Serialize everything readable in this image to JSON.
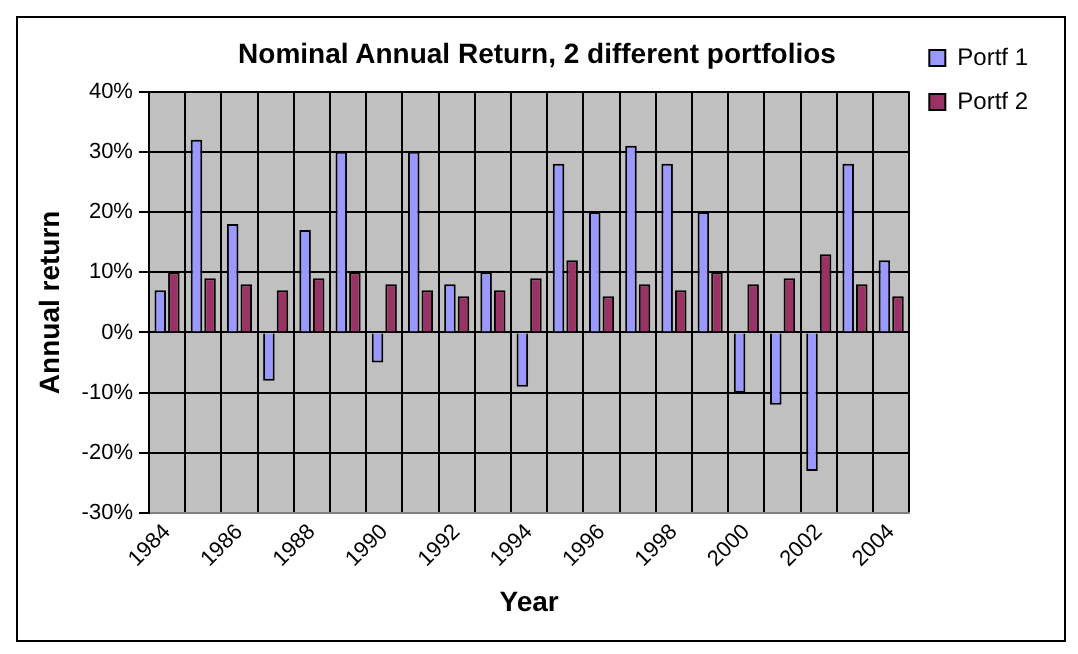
{
  "chart_data": {
    "type": "bar",
    "title": "Nominal Annual Return, 2 different portfolios",
    "xlabel": "Year",
    "ylabel": "Annual return",
    "categories": [
      "1984",
      null,
      "1986",
      null,
      "1988",
      null,
      "1990",
      null,
      "1992",
      null,
      "1994",
      null,
      "1996",
      null,
      "1998",
      null,
      "2000",
      null,
      "2002",
      null,
      "2004"
    ],
    "series": [
      {
        "name": "Portf 1",
        "color": "#9999ff",
        "values": [
          7,
          32,
          18,
          -8,
          17,
          30,
          -5,
          30,
          8,
          10,
          -9,
          28,
          20,
          31,
          28,
          20,
          -10,
          -12,
          -23,
          28,
          12
        ]
      },
      {
        "name": "Portf 2",
        "color": "#993366",
        "values": [
          10,
          9,
          8,
          7,
          9,
          10,
          8,
          7,
          6,
          7,
          9,
          12,
          6,
          8,
          7,
          10,
          8,
          9,
          13,
          8,
          6
        ]
      }
    ],
    "ylim": [
      -30,
      40
    ],
    "yticks": [
      {
        "value": -30,
        "label": "-30%"
      },
      {
        "value": -20,
        "label": "-20%"
      },
      {
        "value": -10,
        "label": "-10%"
      },
      {
        "value": 0,
        "label": "0%"
      },
      {
        "value": 10,
        "label": "10%"
      },
      {
        "value": 20,
        "label": "20%"
      },
      {
        "value": 30,
        "label": "30%"
      },
      {
        "value": 40,
        "label": "40%"
      }
    ],
    "grid": true,
    "legend": "top right"
  }
}
